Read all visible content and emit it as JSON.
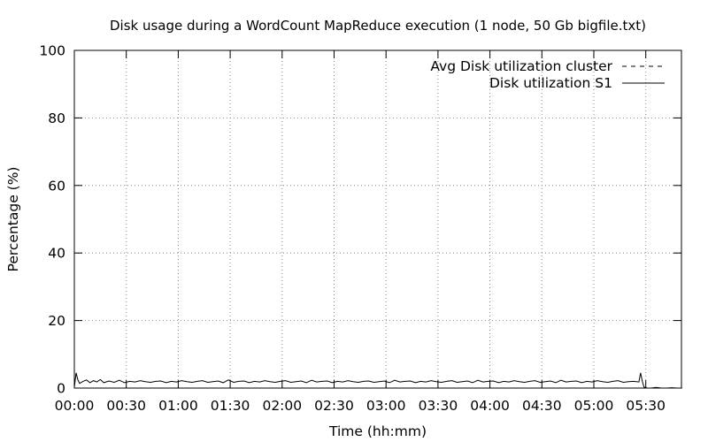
{
  "chart_data": {
    "type": "line",
    "title": "Disk usage during a WordCount MapReduce execution (1 node, 50 Gb bigfile.txt)",
    "xlabel": "Time (hh:mm)",
    "ylabel": "Percentage (%)",
    "xlim_minutes": [
      0,
      352
    ],
    "ylim": [
      0,
      100
    ],
    "x_ticks": [
      {
        "label": "00:00",
        "minutes": 0
      },
      {
        "label": "00:30",
        "minutes": 30
      },
      {
        "label": "01:00",
        "minutes": 60
      },
      {
        "label": "01:30",
        "minutes": 90
      },
      {
        "label": "02:00",
        "minutes": 120
      },
      {
        "label": "02:30",
        "minutes": 150
      },
      {
        "label": "03:00",
        "minutes": 180
      },
      {
        "label": "03:30",
        "minutes": 210
      },
      {
        "label": "04:00",
        "minutes": 240
      },
      {
        "label": "04:30",
        "minutes": 270
      },
      {
        "label": "05:00",
        "minutes": 300
      },
      {
        "label": "05:30",
        "minutes": 330
      }
    ],
    "y_ticks": [
      0,
      20,
      40,
      60,
      80,
      100
    ],
    "grid": true,
    "legend_position": "top-right",
    "series": [
      {
        "name": "Avg Disk utilization cluster",
        "style": "dashed",
        "color": "#000000",
        "x_minutes": [
          0,
          351
        ],
        "y": [
          0,
          0
        ]
      },
      {
        "name": "Disk utilization S1",
        "style": "solid",
        "color": "#000000",
        "x_minutes": [
          0,
          1,
          2,
          3,
          5,
          7,
          9,
          11,
          13,
          15,
          17,
          20,
          23,
          26,
          29,
          32,
          35,
          38,
          41,
          44,
          47,
          50,
          53,
          56,
          59,
          62,
          65,
          68,
          71,
          74,
          77,
          80,
          83,
          86,
          89,
          92,
          95,
          98,
          101,
          104,
          107,
          110,
          113,
          116,
          119,
          122,
          125,
          128,
          131,
          134,
          137,
          140,
          143,
          146,
          149,
          152,
          155,
          158,
          161,
          164,
          167,
          170,
          173,
          176,
          179,
          182,
          185,
          188,
          191,
          194,
          197,
          200,
          203,
          206,
          209,
          212,
          215,
          218,
          221,
          224,
          227,
          230,
          233,
          236,
          239,
          242,
          245,
          248,
          251,
          254,
          257,
          260,
          263,
          266,
          269,
          272,
          275,
          278,
          281,
          284,
          287,
          290,
          293,
          296,
          299,
          302,
          305,
          308,
          311,
          314,
          317,
          320,
          323,
          326,
          327,
          328,
          329,
          330,
          331,
          333,
          336,
          339,
          342,
          345,
          348,
          351
        ],
        "y": [
          0.3,
          4.5,
          2.5,
          1.4,
          2.0,
          2.4,
          1.6,
          2.2,
          1.8,
          2.5,
          1.6,
          2.1,
          1.7,
          2.3,
          1.6,
          2.0,
          1.8,
          2.2,
          1.9,
          1.7,
          2.0,
          2.1,
          1.6,
          2.0,
          1.8,
          2.2,
          1.9,
          1.7,
          2.0,
          2.2,
          1.7,
          1.9,
          2.1,
          1.6,
          2.4,
          1.7,
          2.0,
          2.1,
          1.6,
          2.0,
          1.8,
          2.2,
          1.9,
          1.7,
          2.0,
          2.2,
          1.7,
          1.9,
          2.1,
          1.6,
          2.3,
          1.8,
          2.0,
          2.1,
          1.6,
          2.0,
          1.8,
          2.2,
          1.9,
          1.7,
          2.0,
          2.1,
          1.7,
          1.9,
          2.1,
          1.6,
          2.3,
          1.8,
          2.0,
          2.1,
          1.6,
          2.0,
          1.8,
          2.2,
          1.9,
          1.7,
          2.0,
          2.2,
          1.7,
          1.9,
          2.1,
          1.6,
          2.3,
          1.8,
          2.0,
          2.1,
          1.6,
          2.0,
          1.8,
          2.2,
          1.9,
          1.7,
          2.0,
          2.2,
          1.7,
          1.9,
          2.1,
          1.6,
          2.3,
          1.8,
          2.0,
          2.1,
          1.6,
          2.0,
          1.8,
          2.2,
          1.9,
          1.7,
          2.0,
          2.2,
          1.7,
          1.9,
          2.0,
          1.8,
          4.5,
          2.0,
          0.3,
          0.1,
          0.0,
          0.0,
          0.2,
          0.0,
          0.0,
          0.1,
          0.0,
          0.0
        ]
      }
    ]
  }
}
